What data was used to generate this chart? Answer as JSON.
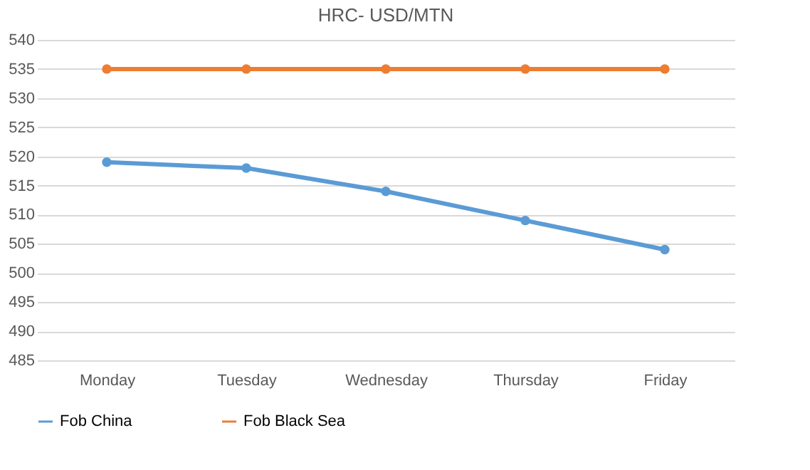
{
  "chart_data": {
    "type": "line",
    "title": "HRC- USD/MTN",
    "categories": [
      "Monday",
      "Tuesday",
      "Wednesday",
      "Thursday",
      "Friday"
    ],
    "series": [
      {
        "name": "Fob China",
        "color": "#5b9bd5",
        "values": [
          519,
          518,
          514,
          509,
          504
        ]
      },
      {
        "name": "Fob Black Sea",
        "color": "#ed7d31",
        "values": [
          535,
          535,
          535,
          535,
          535
        ]
      }
    ],
    "ylim": [
      485,
      540
    ],
    "yticks": [
      485,
      490,
      495,
      500,
      505,
      510,
      515,
      520,
      525,
      530,
      535,
      540
    ],
    "grid": "y",
    "legend": "bottom",
    "marker": "circle",
    "line_style": "solid"
  }
}
